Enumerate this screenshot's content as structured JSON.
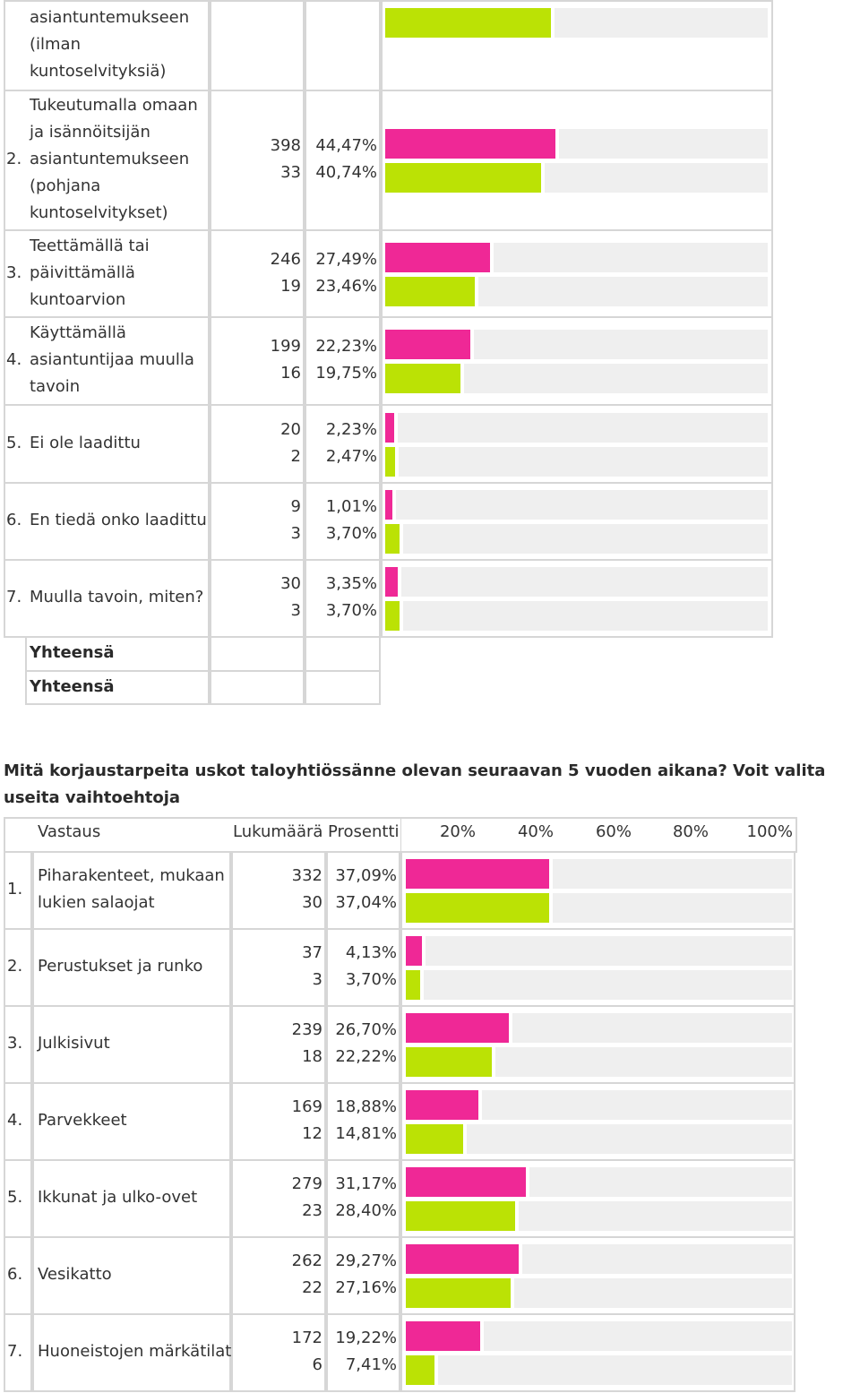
{
  "table1": {
    "rows": [
      {
        "num": "",
        "label_lines": [
          "asiantuntemukseen",
          "(ilman",
          "kuntoselvityksiä)"
        ],
        "counts": [
          "",
          ""
        ],
        "percents": [
          "",
          ""
        ],
        "fractions": [
          null,
          0.4344
        ]
      },
      {
        "num": "2.",
        "label_lines": [
          "Tukeutumalla omaan",
          "ja isännöitsijän",
          "asiantuntemukseen",
          "(pohjana",
          "kuntoselvitykset)"
        ],
        "counts": [
          "398",
          "33"
        ],
        "percents": [
          "44,47%",
          "40,74%"
        ],
        "fractions": [
          0.4447,
          0.4074
        ]
      },
      {
        "num": "3.",
        "label_lines": [
          "Teettämällä tai",
          "päivittämällä",
          "kuntoarvion"
        ],
        "counts": [
          "246",
          "19"
        ],
        "percents": [
          "27,49%",
          "23,46%"
        ],
        "fractions": [
          0.2749,
          0.2346
        ]
      },
      {
        "num": "4.",
        "label_lines": [
          "Käyttämällä",
          "asiantuntijaa muulla",
          "tavoin"
        ],
        "counts": [
          "199",
          "16"
        ],
        "percents": [
          "22,23%",
          "19,75%"
        ],
        "fractions": [
          0.2223,
          0.1975
        ]
      },
      {
        "num": "5.",
        "label_lines": [
          "Ei ole laadittu"
        ],
        "counts": [
          "20",
          "2"
        ],
        "percents": [
          "2,23%",
          "2,47%"
        ],
        "fractions": [
          0.0223,
          0.0247
        ]
      },
      {
        "num": "6.",
        "label_lines": [
          "En tiedä onko laadittu"
        ],
        "counts": [
          "9",
          "3"
        ],
        "percents": [
          "1,01%",
          "3,70%"
        ],
        "fractions": [
          0.0101,
          0.037
        ]
      },
      {
        "num": "7.",
        "label_lines": [
          "Muulla tavoin, miten?"
        ],
        "counts": [
          "30",
          "3"
        ],
        "percents": [
          "3,35%",
          "3,70%"
        ],
        "fractions": [
          0.0335,
          0.037
        ]
      }
    ],
    "totals": [
      "Yhteensä",
      "Yhteensä"
    ]
  },
  "question2": {
    "title": "Mitä korjaustarpeita uskot taloyhtiössänne olevan seuraavan 5 vuoden aikana? Voit valita useita vaihtoehtoja",
    "headers": {
      "answer": "Vastaus",
      "count": "Lukumäärä",
      "percent": "Prosentti",
      "scale": [
        "20%",
        "40%",
        "60%",
        "80%",
        "100%"
      ]
    },
    "rows": [
      {
        "num": "1.",
        "label_lines": [
          "Piharakenteet, mukaan",
          "lukien salaojat"
        ],
        "counts": [
          "332",
          "30"
        ],
        "percents": [
          "37,09%",
          "37,04%"
        ],
        "fractions": [
          0.3709,
          0.3704
        ]
      },
      {
        "num": "2.",
        "label_lines": [
          "Perustukset ja runko"
        ],
        "counts": [
          "37",
          "3"
        ],
        "percents": [
          "4,13%",
          "3,70%"
        ],
        "fractions": [
          0.0413,
          0.037
        ]
      },
      {
        "num": "3.",
        "label_lines": [
          "Julkisivut"
        ],
        "counts": [
          "239",
          "18"
        ],
        "percents": [
          "26,70%",
          "22,22%"
        ],
        "fractions": [
          0.267,
          0.2222
        ]
      },
      {
        "num": "4.",
        "label_lines": [
          "Parvekkeet"
        ],
        "counts": [
          "169",
          "12"
        ],
        "percents": [
          "18,88%",
          "14,81%"
        ],
        "fractions": [
          0.1888,
          0.1481
        ]
      },
      {
        "num": "5.",
        "label_lines": [
          "Ikkunat ja ulko-ovet"
        ],
        "counts": [
          "279",
          "23"
        ],
        "percents": [
          "31,17%",
          "28,40%"
        ],
        "fractions": [
          0.3117,
          0.284
        ]
      },
      {
        "num": "6.",
        "label_lines": [
          "Vesikatto"
        ],
        "counts": [
          "262",
          "22"
        ],
        "percents": [
          "29,27%",
          "27,16%"
        ],
        "fractions": [
          0.2927,
          0.2716
        ]
      },
      {
        "num": "7.",
        "label_lines": [
          "Huoneistojen märkätilat"
        ],
        "counts": [
          "172",
          "6"
        ],
        "percents": [
          "19,22%",
          "7,41%"
        ],
        "fractions": [
          0.1922,
          0.0741
        ]
      }
    ]
  },
  "colors": {
    "series1": "#ef2896",
    "series2": "#bbe205",
    "track": "#efefef",
    "border": "#d6d6d6"
  }
}
